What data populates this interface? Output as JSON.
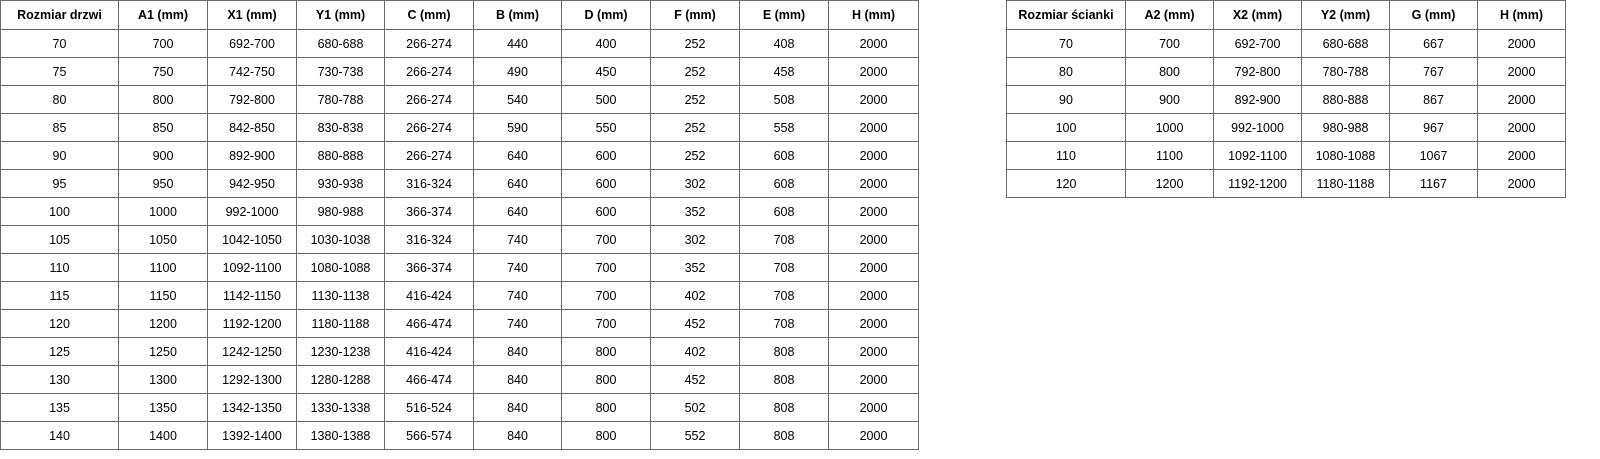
{
  "door_table": {
    "headers": [
      "Rozmiar drzwi",
      "A1 (mm)",
      "X1 (mm)",
      "Y1 (mm)",
      "C (mm)",
      "B (mm)",
      "D (mm)",
      "F (mm)",
      "E (mm)",
      "H (mm)"
    ],
    "rows": [
      [
        "70",
        "700",
        "692-700",
        "680-688",
        "266-274",
        "440",
        "400",
        "252",
        "408",
        "2000"
      ],
      [
        "75",
        "750",
        "742-750",
        "730-738",
        "266-274",
        "490",
        "450",
        "252",
        "458",
        "2000"
      ],
      [
        "80",
        "800",
        "792-800",
        "780-788",
        "266-274",
        "540",
        "500",
        "252",
        "508",
        "2000"
      ],
      [
        "85",
        "850",
        "842-850",
        "830-838",
        "266-274",
        "590",
        "550",
        "252",
        "558",
        "2000"
      ],
      [
        "90",
        "900",
        "892-900",
        "880-888",
        "266-274",
        "640",
        "600",
        "252",
        "608",
        "2000"
      ],
      [
        "95",
        "950",
        "942-950",
        "930-938",
        "316-324",
        "640",
        "600",
        "302",
        "608",
        "2000"
      ],
      [
        "100",
        "1000",
        "992-1000",
        "980-988",
        "366-374",
        "640",
        "600",
        "352",
        "608",
        "2000"
      ],
      [
        "105",
        "1050",
        "1042-1050",
        "1030-1038",
        "316-324",
        "740",
        "700",
        "302",
        "708",
        "2000"
      ],
      [
        "110",
        "1100",
        "1092-1100",
        "1080-1088",
        "366-374",
        "740",
        "700",
        "352",
        "708",
        "2000"
      ],
      [
        "115",
        "1150",
        "1142-1150",
        "1130-1138",
        "416-424",
        "740",
        "700",
        "402",
        "708",
        "2000"
      ],
      [
        "120",
        "1200",
        "1192-1200",
        "1180-1188",
        "466-474",
        "740",
        "700",
        "452",
        "708",
        "2000"
      ],
      [
        "125",
        "1250",
        "1242-1250",
        "1230-1238",
        "416-424",
        "840",
        "800",
        "402",
        "808",
        "2000"
      ],
      [
        "130",
        "1300",
        "1292-1300",
        "1280-1288",
        "466-474",
        "840",
        "800",
        "452",
        "808",
        "2000"
      ],
      [
        "135",
        "1350",
        "1342-1350",
        "1330-1338",
        "516-524",
        "840",
        "800",
        "502",
        "808",
        "2000"
      ],
      [
        "140",
        "1400",
        "1392-1400",
        "1380-1388",
        "566-574",
        "840",
        "800",
        "552",
        "808",
        "2000"
      ]
    ]
  },
  "wall_table": {
    "headers": [
      "Rozmiar ścianki",
      "A2 (mm)",
      "X2 (mm)",
      "Y2 (mm)",
      "G (mm)",
      "H (mm)"
    ],
    "rows": [
      [
        "70",
        "700",
        "692-700",
        "680-688",
        "667",
        "2000"
      ],
      [
        "80",
        "800",
        "792-800",
        "780-788",
        "767",
        "2000"
      ],
      [
        "90",
        "900",
        "892-900",
        "880-888",
        "867",
        "2000"
      ],
      [
        "100",
        "1000",
        "992-1000",
        "980-988",
        "967",
        "2000"
      ],
      [
        "110",
        "1100",
        "1092-1100",
        "1080-1088",
        "1067",
        "2000"
      ],
      [
        "120",
        "1200",
        "1192-1200",
        "1180-1188",
        "1167",
        "2000"
      ]
    ]
  }
}
